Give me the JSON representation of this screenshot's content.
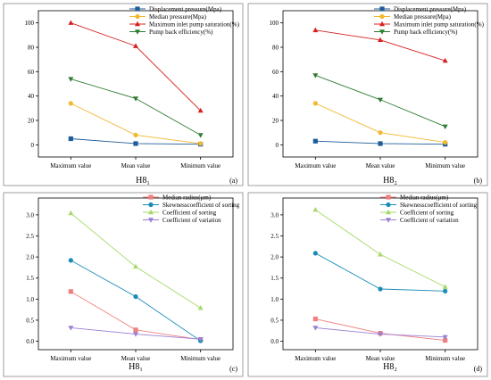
{
  "chart_data": [
    {
      "type": "line",
      "panel_label": "(a)",
      "xlabel": "H8₁",
      "categories": [
        "Maximum value",
        "Mean value",
        "Minimum value"
      ],
      "ylim": [
        -10,
        110
      ],
      "yticks": [
        0,
        20,
        40,
        60,
        80,
        100
      ],
      "legend_position": "top-right",
      "grid": false,
      "series": [
        {
          "name": "Displacement pressure(Mpa)",
          "values": [
            5,
            1,
            0.5
          ],
          "color": "#1f5c99",
          "marker": "square"
        },
        {
          "name": "Median pressure(Mpa)",
          "values": [
            34,
            8,
            1
          ],
          "color": "#f2b830",
          "marker": "circle"
        },
        {
          "name": "Maximum inlet pump saturation(%)",
          "values": [
            100,
            81,
            28
          ],
          "color": "#d62020",
          "marker": "triangle-up"
        },
        {
          "name": "Pump back efficiency(%)",
          "values": [
            54,
            38,
            8
          ],
          "color": "#2e7d32",
          "marker": "triangle-down"
        }
      ]
    },
    {
      "type": "line",
      "panel_label": "(b)",
      "xlabel": "H8₂",
      "categories": [
        "Maximum value",
        "Mean value",
        "Minimum value"
      ],
      "ylim": [
        -10,
        110
      ],
      "yticks": [
        0,
        20,
        40,
        60,
        80,
        100
      ],
      "legend_position": "top-right",
      "grid": false,
      "series": [
        {
          "name": "Displacement pressure(Mpa)",
          "values": [
            3,
            1,
            0.5
          ],
          "color": "#1f5c99",
          "marker": "square"
        },
        {
          "name": "Median pressure(Mpa)",
          "values": [
            34,
            10,
            2
          ],
          "color": "#f2b830",
          "marker": "circle"
        },
        {
          "name": "Maximum inlet pump saturation(%)",
          "values": [
            94,
            86,
            69
          ],
          "color": "#d62020",
          "marker": "triangle-up"
        },
        {
          "name": "Pump back efficiency(%)",
          "values": [
            57,
            37,
            15
          ],
          "color": "#2e7d32",
          "marker": "triangle-down"
        }
      ]
    },
    {
      "type": "line",
      "panel_label": "(c)",
      "xlabel": "H8₁",
      "categories": [
        "Maximum value",
        "Mean value",
        "Minimum value"
      ],
      "ylim": [
        -0.2,
        3.4
      ],
      "yticks": [
        0.0,
        0.5,
        1.0,
        1.5,
        2.0,
        2.5,
        3.0
      ],
      "legend_position": "top-right",
      "grid": false,
      "series": [
        {
          "name": "Median radius(μm)",
          "values": [
            1.18,
            0.27,
            0.04
          ],
          "color": "#f08080",
          "marker": "square"
        },
        {
          "name": "Skewnesscoefficient of sorting",
          "values": [
            1.92,
            1.06,
            0.01
          ],
          "color": "#1a8cb8",
          "marker": "circle"
        },
        {
          "name": "Coefficient of sorting",
          "values": [
            3.04,
            1.77,
            0.79
          ],
          "color": "#a6d96a",
          "marker": "triangle-up"
        },
        {
          "name": "Coefficient of variation",
          "values": [
            0.32,
            0.17,
            0.05
          ],
          "color": "#9b7fd4",
          "marker": "triangle-down"
        }
      ]
    },
    {
      "type": "line",
      "panel_label": "(d)",
      "xlabel": "H8₂",
      "categories": [
        "Maximum value",
        "Mean value",
        "Minimum value"
      ],
      "ylim": [
        -0.2,
        3.4
      ],
      "yticks": [
        0.0,
        0.5,
        1.0,
        1.5,
        2.0,
        2.5,
        3.0
      ],
      "legend_position": "top-right",
      "grid": false,
      "series": [
        {
          "name": "Median radius(μm)",
          "values": [
            0.53,
            0.19,
            0.02
          ],
          "color": "#f08080",
          "marker": "square"
        },
        {
          "name": "Skewnesscoefficient of sorting",
          "values": [
            2.09,
            1.24,
            1.19
          ],
          "color": "#1a8cb8",
          "marker": "circle"
        },
        {
          "name": "Coefficient of sorting",
          "values": [
            3.12,
            2.06,
            1.29
          ],
          "color": "#a6d96a",
          "marker": "triangle-up"
        },
        {
          "name": "Coefficient of variation",
          "values": [
            0.32,
            0.17,
            0.1
          ],
          "color": "#9b7fd4",
          "marker": "triangle-down"
        }
      ]
    }
  ]
}
